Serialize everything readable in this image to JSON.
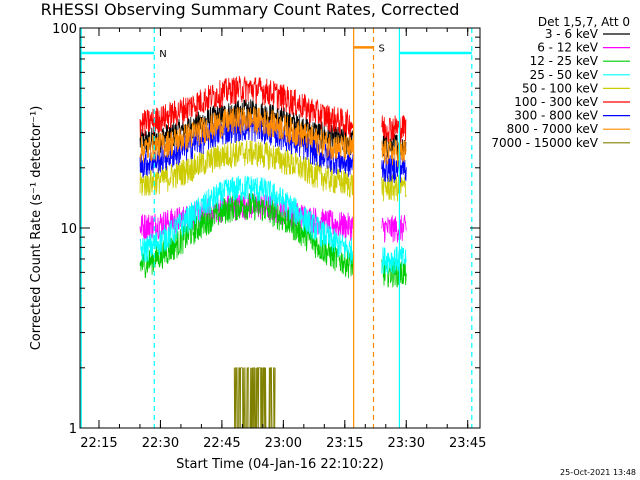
{
  "chart_data": {
    "type": "line",
    "title": "RHESSI Observing Summary Count Rates, Corrected",
    "xlabel": "Start Time (04-Jan-16 22:10:22)",
    "ylabel": "Corrected Count Rate (s⁻¹ detector⁻¹)",
    "yscale": "log",
    "ylim": [
      1,
      100
    ],
    "xlim": [
      "22:10:22",
      "23:48:00"
    ],
    "x_ticks": [
      "22:15",
      "22:30",
      "22:45",
      "23:00",
      "23:15",
      "23:30",
      "23:45"
    ],
    "y_ticks": [
      "1",
      "10",
      "100"
    ],
    "legend_title": "Det 1,5,7, Att 0",
    "legend_position": "right",
    "annotations": [
      {
        "text": "N",
        "x_start": "22:10:22",
        "x_end": "22:28:30",
        "y": 75,
        "color": "#00ffff"
      },
      {
        "text": "S",
        "x_start": "23:17:10",
        "x_end": "23:22:00",
        "y": 80,
        "color": "#ff8c00"
      }
    ],
    "series": [
      {
        "name": "3 - 6 keV",
        "color": "#000000",
        "segments": [
          [
            "22:25",
            "23:17",
            26,
            38
          ],
          [
            "23:24",
            "23:30",
            26,
            26
          ]
        ]
      },
      {
        "name": "6 - 12 keV",
        "color": "#ff00ff",
        "segments": [
          [
            "22:25",
            "23:17",
            10,
            13
          ],
          [
            "23:24",
            "23:30",
            10,
            10
          ]
        ]
      },
      {
        "name": "12 - 25 keV",
        "color": "#00cc00",
        "segments": [
          [
            "22:25",
            "23:17",
            6,
            13
          ],
          [
            "23:24",
            "23:30",
            6,
            6
          ]
        ]
      },
      {
        "name": "25 - 50 keV",
        "color": "#00ffff",
        "segments": [
          [
            "22:25",
            "23:17",
            7,
            16
          ],
          [
            "23:24",
            "23:30",
            7,
            7
          ]
        ]
      },
      {
        "name": "50 - 100 keV",
        "color": "#cccc00",
        "segments": [
          [
            "22:25",
            "23:17",
            16,
            24
          ],
          [
            "23:24",
            "23:30",
            16,
            16
          ]
        ]
      },
      {
        "name": "100 - 300 keV",
        "color": "#ff0000",
        "segments": [
          [
            "22:25",
            "23:17",
            32,
            50
          ],
          [
            "23:24",
            "23:30",
            32,
            32
          ]
        ]
      },
      {
        "name": "300 - 800 keV",
        "color": "#0000ff",
        "segments": [
          [
            "22:25",
            "23:17",
            20,
            32
          ],
          [
            "23:24",
            "23:30",
            20,
            20
          ]
        ]
      },
      {
        "name": "800 - 7000 keV",
        "color": "#ff8c00",
        "segments": [
          [
            "22:25",
            "23:17",
            24,
            35
          ],
          [
            "23:24",
            "23:30",
            24,
            24
          ]
        ]
      },
      {
        "name": "7000 - 15000 keV",
        "color": "#808000",
        "segments": [
          [
            "22:48",
            "22:58",
            1,
            2
          ]
        ]
      }
    ]
  },
  "stamp": "25-Oct-2021 13:48"
}
